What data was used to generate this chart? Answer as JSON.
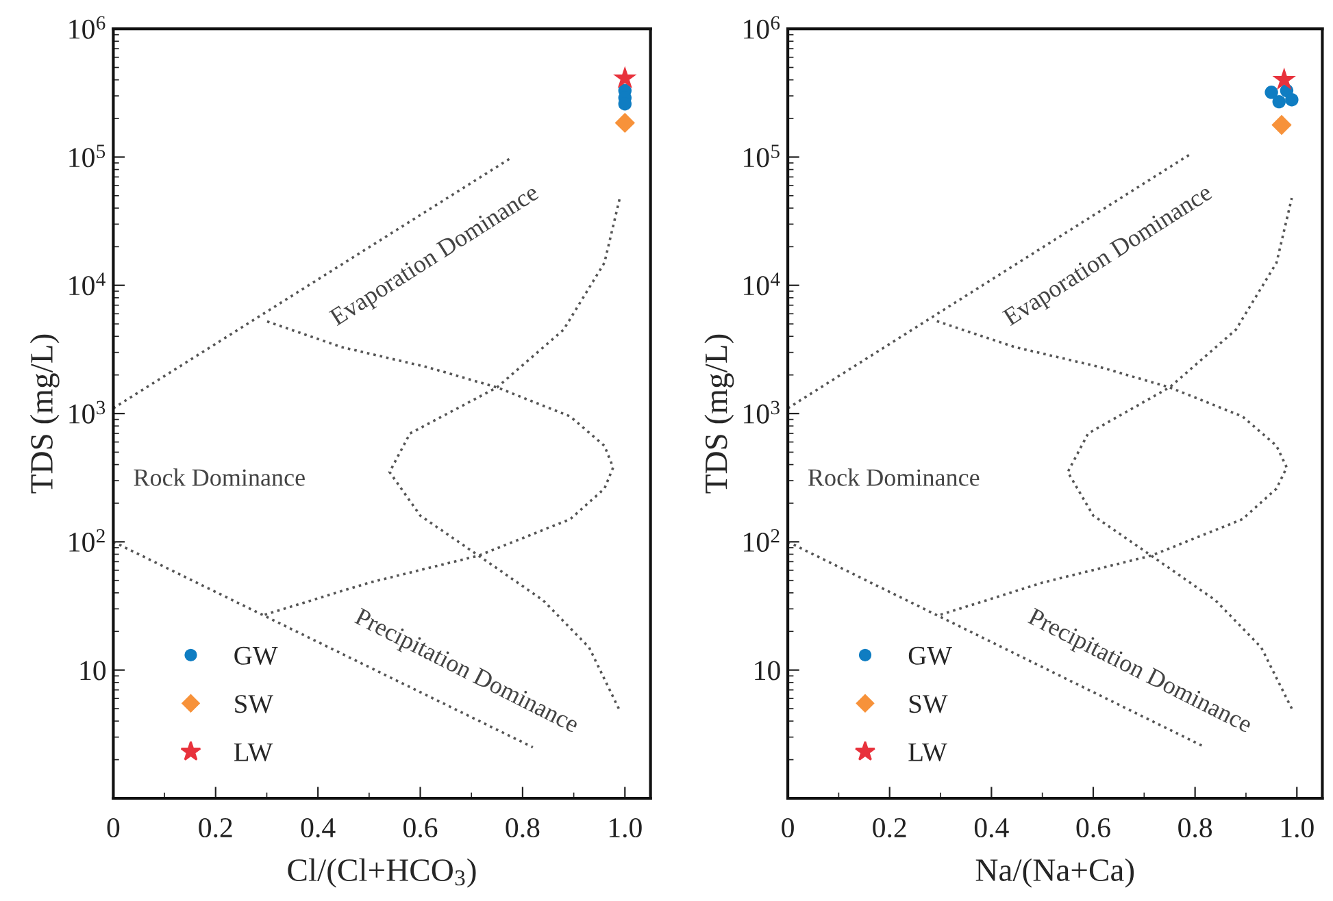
{
  "chart_data": [
    {
      "type": "scatter",
      "xlabel": "Cl/(Cl+HCO$_{3}$)",
      "ylabel": "TDS (mg/L)",
      "log": "y",
      "grid": false,
      "legend": "bottom left",
      "xlim": [
        0,
        1.05
      ],
      "ylim": [
        1,
        1000000
      ],
      "xticks": [
        0,
        0.2,
        0.4,
        0.6,
        0.8,
        {
          "value": 1,
          "label": "1.0"
        }
      ],
      "yticks": [
        10,
        {
          "value": 100,
          "label": "10$^{2}$"
        },
        {
          "value": 1000,
          "label": "10$^{3}$"
        },
        {
          "value": 10000,
          "label": "10$^{4}$"
        },
        {
          "value": 100000,
          "label": "10$^{5}$"
        },
        {
          "value": 1000000,
          "label": "10$^{6}$"
        }
      ],
      "annotations": [
        "Evaporation Dominance",
        "Rock Dominance",
        "Precipitation Dominance"
      ],
      "series": [
        {
          "type": "line",
          "color": "#555555",
          "line_style": "dotted",
          "marker": "none",
          "x": [
            0,
            0.78
          ],
          "values": [
            1100,
            100000
          ]
        },
        {
          "type": "line",
          "color": "#555555",
          "line_style": "dotted",
          "marker": "none",
          "x": [
            0,
            0.82
          ],
          "values": [
            100,
            2.5
          ]
        },
        {
          "type": "line",
          "color": "#555555",
          "line_style": "dotted",
          "marker": "none",
          "x": [
            0.296,
            0.5,
            0.714,
            0.893,
            0.96,
            0.977,
            0.96,
            0.893,
            0.75,
            0.614,
            0.446,
            0.296
          ],
          "values": [
            27,
            48,
            78,
            150,
            260,
            380,
            560,
            950,
            1600,
            2300,
            3300,
            5300
          ]
        },
        {
          "type": "line",
          "color": "#555555",
          "line_style": "dotted",
          "marker": "none",
          "x": [
            0.988,
            0.93,
            0.84,
            0.714,
            0.6,
            0.54,
            0.58,
            0.75,
            0.88,
            0.96,
            0.99
          ],
          "values": [
            5,
            15,
            35,
            78,
            160,
            350,
            700,
            1600,
            4500,
            15000,
            48000
          ]
        },
        {
          "name": "GW",
          "color": "#0f7dc2",
          "marker": "circle",
          "x": [
            1,
            1,
            1
          ],
          "values": [
            330000,
            290000,
            260000
          ]
        },
        {
          "name": "SW",
          "color": "#f7923a",
          "marker": "diamond",
          "x": [
            1
          ],
          "values": [
            185000
          ]
        },
        {
          "name": "LW",
          "color": "#e8323c",
          "marker": "star",
          "x": [
            1
          ],
          "values": [
            411000
          ]
        }
      ]
    },
    {
      "type": "scatter",
      "xlabel": "Na/(Na+Ca)",
      "ylabel": "TDS (mg/L)",
      "log": "y",
      "grid": false,
      "legend": "bottom left",
      "xlim": [
        0,
        1.05
      ],
      "ylim": [
        1,
        1000000
      ],
      "xticks": [
        0,
        0.2,
        0.4,
        0.6,
        0.8,
        {
          "value": 1,
          "label": "1.0"
        }
      ],
      "yticks": [
        10,
        {
          "value": 100,
          "label": "10$^{2}$"
        },
        {
          "value": 1000,
          "label": "10$^{3}$"
        },
        {
          "value": 10000,
          "label": "10$^{4}$"
        },
        {
          "value": 100000,
          "label": "10$^{5}$"
        },
        {
          "value": 1000000,
          "label": "10$^{6}$"
        }
      ],
      "annotations": [
        "Evaporation Dominance",
        "Rock Dominance",
        "Precipitation Dominance"
      ],
      "series": [
        {
          "type": "line",
          "color": "#555555",
          "line_style": "dotted",
          "marker": "none",
          "x": [
            0,
            0.79
          ],
          "values": [
            1100,
            105000
          ]
        },
        {
          "type": "line",
          "color": "#555555",
          "line_style": "dotted",
          "marker": "none",
          "x": [
            0,
            0.82
          ],
          "values": [
            100,
            2.5
          ]
        },
        {
          "type": "line",
          "color": "#555555",
          "line_style": "dotted",
          "marker": "none",
          "x": [
            0.3,
            0.5,
            0.714,
            0.893,
            0.96,
            0.98,
            0.96,
            0.893,
            0.75,
            0.614,
            0.446,
            0.29
          ],
          "values": [
            27,
            48,
            78,
            150,
            260,
            380,
            560,
            950,
            1600,
            2300,
            3300,
            5300
          ]
        },
        {
          "type": "line",
          "color": "#555555",
          "line_style": "dotted",
          "marker": "none",
          "x": [
            0.99,
            0.93,
            0.84,
            0.714,
            0.6,
            0.55,
            0.59,
            0.75,
            0.88,
            0.96,
            0.99
          ],
          "values": [
            5,
            15,
            35,
            78,
            160,
            350,
            700,
            1600,
            4500,
            15000,
            48000
          ]
        },
        {
          "name": "GW",
          "color": "#0f7dc2",
          "marker": "circle",
          "x": [
            0.95,
            0.965,
            0.98,
            0.99
          ],
          "values": [
            320000,
            270000,
            330000,
            280000
          ]
        },
        {
          "name": "SW",
          "color": "#f7923a",
          "marker": "diamond",
          "x": [
            0.97
          ],
          "values": [
            178000
          ]
        },
        {
          "name": "LW",
          "color": "#e8323c",
          "marker": "star",
          "x": [
            0.975
          ],
          "values": [
            400000
          ]
        }
      ]
    }
  ]
}
